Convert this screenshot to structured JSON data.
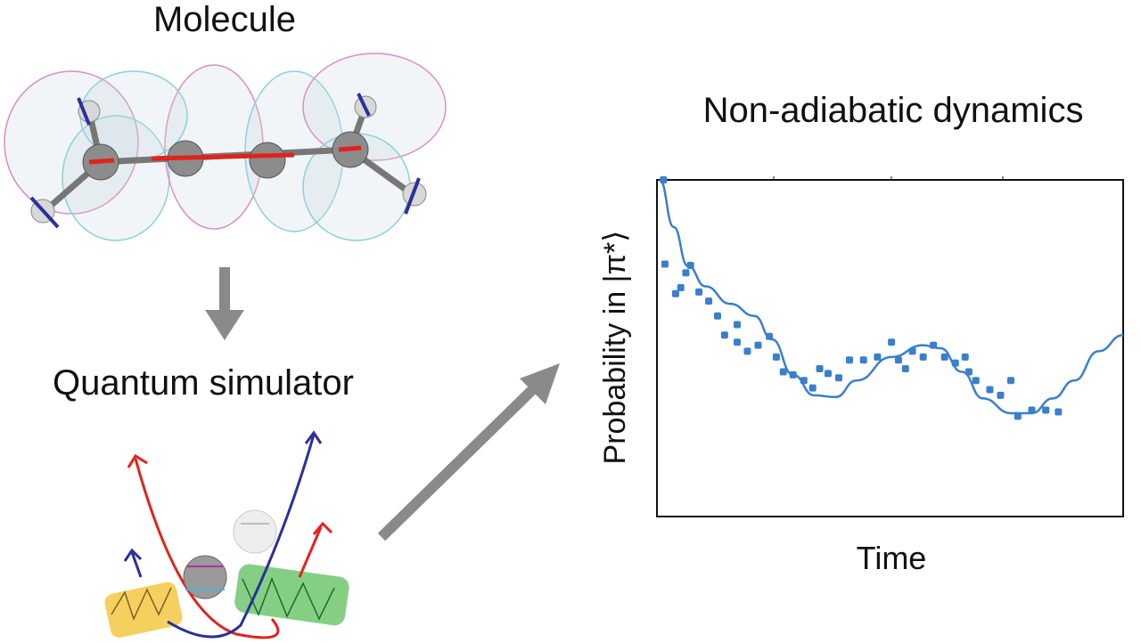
{
  "labels": {
    "molecule": "Molecule",
    "simulator": "Quantum simulator",
    "dynamics": "Non-adiabatic dynamics"
  },
  "colors": {
    "data_blue": "#3a7fcc",
    "arrow_gray": "#8a8a8a",
    "carbon_gray": "#8c8c8c",
    "vector_red": "#e0231c",
    "vector_blue": "#2b2f9a",
    "laser_yellow": "#f5c842",
    "laser_green": "#5cbf5c"
  },
  "chart_data": {
    "type": "line",
    "title": "",
    "xlabel": "Time",
    "ylabel": "Probability in |π*⟩",
    "xlim": [
      0,
      1
    ],
    "ylim": [
      0,
      1
    ],
    "tick_labels": false,
    "grid": false,
    "series": [
      {
        "style": "line",
        "color": "#3a7fcc",
        "x": [
          0.006,
          0.036,
          0.066,
          0.104,
          0.157,
          0.209,
          0.247,
          0.292,
          0.337,
          0.383,
          0.428,
          0.503,
          0.571,
          0.608,
          0.654,
          0.699,
          0.759,
          0.804,
          0.849,
          0.895,
          0.947,
          1.0
        ],
        "y": [
          1.0,
          0.86,
          0.745,
          0.684,
          0.632,
          0.596,
          0.526,
          0.421,
          0.36,
          0.355,
          0.404,
          0.474,
          0.509,
          0.5,
          0.43,
          0.351,
          0.307,
          0.307,
          0.351,
          0.404,
          0.491,
          0.539
        ]
      },
      {
        "style": "scatter",
        "color": "#3a7fcc",
        "x": [
          0.014,
          0.017,
          0.04,
          0.051,
          0.062,
          0.072,
          0.09,
          0.111,
          0.13,
          0.145,
          0.172,
          0.172,
          0.194,
          0.217,
          0.241,
          0.256,
          0.271,
          0.292,
          0.315,
          0.334,
          0.349,
          0.367,
          0.39,
          0.413,
          0.443,
          0.473,
          0.503,
          0.518,
          0.533,
          0.548,
          0.571,
          0.593,
          0.617,
          0.64,
          0.661,
          0.669,
          0.684,
          0.714,
          0.737,
          0.759,
          0.774,
          0.804,
          0.834,
          0.861
        ],
        "y": [
          1.0,
          0.75,
          0.662,
          0.68,
          0.724,
          0.746,
          0.667,
          0.64,
          0.596,
          0.539,
          0.57,
          0.518,
          0.491,
          0.509,
          0.535,
          0.474,
          0.43,
          0.421,
          0.404,
          0.382,
          0.439,
          0.425,
          0.412,
          0.465,
          0.465,
          0.474,
          0.518,
          0.465,
          0.439,
          0.491,
          0.474,
          0.509,
          0.474,
          0.456,
          0.474,
          0.43,
          0.404,
          0.377,
          0.36,
          0.404,
          0.298,
          0.316,
          0.316,
          0.311
        ]
      }
    ]
  }
}
